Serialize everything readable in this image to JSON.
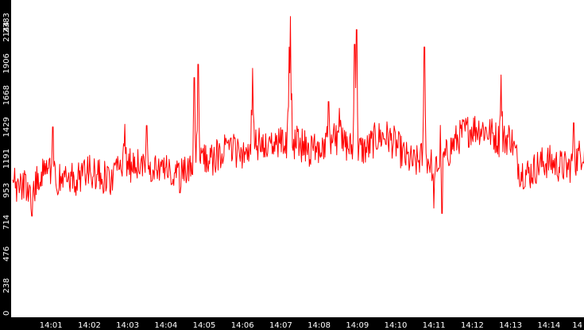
{
  "chart_data": {
    "type": "line",
    "title": "",
    "xlabel": "",
    "ylabel": "",
    "colors": {
      "background": "#000000",
      "plot_background": "#ffffff",
      "series": "#ff0000",
      "tick_text": "#ffffff"
    },
    "grid": false,
    "legend": "none",
    "ylim": [
      0,
      2383
    ],
    "y_ticks": [
      0,
      238,
      476,
      714,
      953,
      1191,
      1429,
      1668,
      1906,
      2144,
      2383
    ],
    "y_tick_labels": [
      "0",
      "238",
      "476",
      "714",
      "953",
      "1191",
      "1429",
      "1668",
      "1906",
      "2144",
      "2383"
    ],
    "x_ticks": [
      1,
      2,
      3,
      4,
      5,
      6,
      7,
      8,
      9,
      10,
      11,
      12,
      13,
      14,
      15
    ],
    "x_tick_labels": [
      "14:01",
      "14:02",
      "14:03",
      "14:04",
      "14:05",
      "14:06",
      "14:07",
      "14:08",
      "14:09",
      "14:10",
      "14:11",
      "14:12",
      "14:13",
      "14:14",
      "14"
    ],
    "xlim": [
      0,
      14.98
    ],
    "anchors": [
      {
        "x": 0.0,
        "y": 940
      },
      {
        "x": 0.25,
        "y": 1000
      },
      {
        "x": 0.5,
        "y": 950
      },
      {
        "x": 0.75,
        "y": 1060
      },
      {
        "x": 1.0,
        "y": 1080
      },
      {
        "x": 1.25,
        "y": 1030
      },
      {
        "x": 1.5,
        "y": 1020
      },
      {
        "x": 1.75,
        "y": 1060
      },
      {
        "x": 2.0,
        "y": 1100
      },
      {
        "x": 2.25,
        "y": 1060
      },
      {
        "x": 2.5,
        "y": 1030
      },
      {
        "x": 2.75,
        "y": 1100
      },
      {
        "x": 3.0,
        "y": 1140
      },
      {
        "x": 3.25,
        "y": 1150
      },
      {
        "x": 3.5,
        "y": 1130
      },
      {
        "x": 3.75,
        "y": 1140
      },
      {
        "x": 4.0,
        "y": 1100
      },
      {
        "x": 4.25,
        "y": 1040
      },
      {
        "x": 4.5,
        "y": 1080
      },
      {
        "x": 4.75,
        "y": 1130
      },
      {
        "x": 5.0,
        "y": 1200
      },
      {
        "x": 5.25,
        "y": 1190
      },
      {
        "x": 5.5,
        "y": 1240
      },
      {
        "x": 5.75,
        "y": 1260
      },
      {
        "x": 6.0,
        "y": 1230
      },
      {
        "x": 6.25,
        "y": 1280
      },
      {
        "x": 6.5,
        "y": 1300
      },
      {
        "x": 6.75,
        "y": 1280
      },
      {
        "x": 7.0,
        "y": 1300
      },
      {
        "x": 7.25,
        "y": 1320
      },
      {
        "x": 7.5,
        "y": 1300
      },
      {
        "x": 7.75,
        "y": 1260
      },
      {
        "x": 8.0,
        "y": 1290
      },
      {
        "x": 8.25,
        "y": 1320
      },
      {
        "x": 8.5,
        "y": 1350
      },
      {
        "x": 8.75,
        "y": 1280
      },
      {
        "x": 9.0,
        "y": 1260
      },
      {
        "x": 9.25,
        "y": 1260
      },
      {
        "x": 9.5,
        "y": 1350
      },
      {
        "x": 9.75,
        "y": 1360
      },
      {
        "x": 10.0,
        "y": 1300
      },
      {
        "x": 10.25,
        "y": 1200
      },
      {
        "x": 10.5,
        "y": 1150
      },
      {
        "x": 10.75,
        "y": 1220
      },
      {
        "x": 11.0,
        "y": 1120
      },
      {
        "x": 11.25,
        "y": 1180
      },
      {
        "x": 11.5,
        "y": 1300
      },
      {
        "x": 11.75,
        "y": 1380
      },
      {
        "x": 12.0,
        "y": 1420
      },
      {
        "x": 12.25,
        "y": 1420
      },
      {
        "x": 12.5,
        "y": 1380
      },
      {
        "x": 12.75,
        "y": 1320
      },
      {
        "x": 13.0,
        "y": 1360
      },
      {
        "x": 13.25,
        "y": 1100
      },
      {
        "x": 13.5,
        "y": 1080
      },
      {
        "x": 13.75,
        "y": 1150
      },
      {
        "x": 14.0,
        "y": 1170
      },
      {
        "x": 14.25,
        "y": 1140
      },
      {
        "x": 14.5,
        "y": 1120
      },
      {
        "x": 14.75,
        "y": 1200
      },
      {
        "x": 14.98,
        "y": 1280
      }
    ],
    "spikes": [
      {
        "x": 4.84,
        "y": 1900
      },
      {
        "x": 4.74,
        "y": 1800
      },
      {
        "x": 6.26,
        "y": 1870
      },
      {
        "x": 7.25,
        "y": 2383
      },
      {
        "x": 7.22,
        "y": 2030
      },
      {
        "x": 8.98,
        "y": 2160
      },
      {
        "x": 8.93,
        "y": 2050
      },
      {
        "x": 8.25,
        "y": 1620
      },
      {
        "x": 8.53,
        "y": 1570
      },
      {
        "x": 10.75,
        "y": 2030
      },
      {
        "x": 11.2,
        "y": 1800
      },
      {
        "x": 12.75,
        "y": 1820
      },
      {
        "x": 14.65,
        "y": 1460
      },
      {
        "x": 0.05,
        "y": 1120
      },
      {
        "x": 11.0,
        "y": 820
      },
      {
        "x": 11.21,
        "y": 780
      },
      {
        "x": 0.5,
        "y": 760
      },
      {
        "x": 1.05,
        "y": 1430
      },
      {
        "x": 2.93,
        "y": 1450
      },
      {
        "x": 3.5,
        "y": 1440
      }
    ],
    "noise_amplitude": 130
  }
}
